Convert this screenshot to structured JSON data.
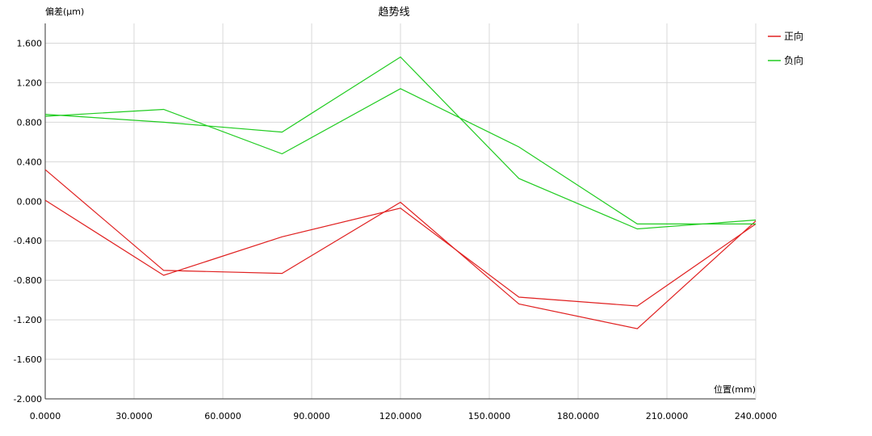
{
  "chart_data": {
    "type": "line",
    "title": "趋势线",
    "ylabel": "偏差(μm)",
    "xlabel": "位置(mm)",
    "xlim": [
      0,
      240
    ],
    "ylim": [
      -2.0,
      1.8
    ],
    "x_ticks": [
      0,
      30,
      60,
      90,
      120,
      150,
      180,
      210,
      240
    ],
    "x_tick_labels": [
      "0.0000",
      "30.0000",
      "60.0000",
      "90.0000",
      "120.0000",
      "150.0000",
      "180.0000",
      "210.0000",
      "240.0000"
    ],
    "y_ticks": [
      -2.0,
      -1.6,
      -1.2,
      -0.8,
      -0.4,
      0.0,
      0.4,
      0.8,
      1.2,
      1.6
    ],
    "y_tick_labels": [
      "-2.000",
      "-1.600",
      "-1.200",
      "-0.800",
      "-0.400",
      "0.000",
      "0.400",
      "0.800",
      "1.200",
      "1.600"
    ],
    "grid": true,
    "legend_position": "right",
    "legend": [
      {
        "label": "正向",
        "color": "#e02020"
      },
      {
        "label": "负向",
        "color": "#20cc20"
      }
    ],
    "series": [
      {
        "group": 0,
        "color": "#e02020",
        "x": [
          0,
          40,
          80,
          120,
          160,
          200,
          240
        ],
        "y": [
          0.32,
          -0.7,
          -0.73,
          -0.01,
          -1.04,
          -1.29,
          -0.2
        ]
      },
      {
        "group": 0,
        "color": "#e02020",
        "x": [
          0,
          40,
          80,
          120,
          160,
          200,
          240
        ],
        "y": [
          0.01,
          -0.75,
          -0.36,
          -0.07,
          -0.97,
          -1.06,
          -0.23
        ]
      },
      {
        "group": 1,
        "color": "#20cc20",
        "x": [
          0,
          40,
          80,
          120,
          160,
          200,
          240
        ],
        "y": [
          0.88,
          0.8,
          0.7,
          1.46,
          0.23,
          -0.28,
          -0.19
        ]
      },
      {
        "group": 1,
        "color": "#20cc20",
        "x": [
          0,
          40,
          80,
          120,
          160,
          200,
          240
        ],
        "y": [
          0.86,
          0.93,
          0.48,
          1.14,
          0.55,
          -0.23,
          -0.23
        ]
      }
    ]
  }
}
